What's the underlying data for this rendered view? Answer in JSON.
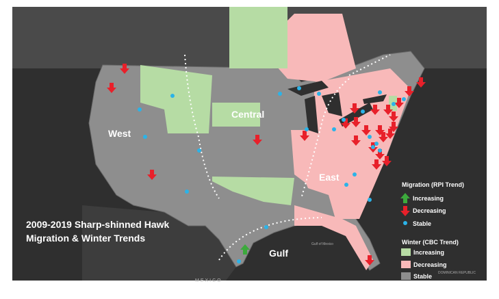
{
  "title": [
    "2009-2019 Sharp-shinned Hawk",
    "Migration & Winter Trends"
  ],
  "regions": [
    "West",
    "Central",
    "East",
    "Gulf"
  ],
  "legend": {
    "migration": {
      "title": "Migration (RPI Trend)",
      "items": [
        "Increasing",
        "Decreasing",
        "Stable"
      ]
    },
    "winter": {
      "title": "Winter (CBC Trend)",
      "items": [
        "Increasing",
        "Decreasing",
        "Stable"
      ]
    }
  },
  "places": [
    "MEXICO",
    "Gulf of Mexico",
    "DOMINICAN REPUBLIC"
  ]
}
